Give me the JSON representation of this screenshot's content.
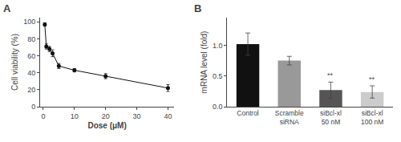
{
  "chart_data": [
    {
      "type": "line",
      "title": "A",
      "x": [
        0.5,
        1,
        2,
        3,
        5,
        10,
        20,
        40
      ],
      "values": [
        97,
        71,
        68,
        63,
        48,
        43,
        36,
        22
      ],
      "yerr": [
        2,
        3,
        3,
        4,
        3,
        2,
        3,
        4
      ],
      "xlabel": "Dose (μM)",
      "ylabel": "Cell viability (%)",
      "xlim": [
        -1,
        42
      ],
      "ylim": [
        0,
        105
      ],
      "xticks": [
        0,
        10,
        20,
        30,
        40
      ],
      "yticks": [
        0,
        20,
        40,
        60,
        80,
        100
      ],
      "color": "#111111",
      "marker": "circle",
      "line_style": "solid",
      "grid": false
    },
    {
      "type": "bar",
      "title": "B",
      "categories": [
        "Control",
        "Scramble\nsiRNA",
        "siBcl-xl\n50 nM",
        "siBcl-xl\n100 nM"
      ],
      "values": [
        1.02,
        0.75,
        0.27,
        0.24
      ],
      "yerr": [
        0.18,
        0.07,
        0.13,
        0.1
      ],
      "colors": [
        "#111111",
        "#999999",
        "#555555",
        "#cccccc"
      ],
      "ylabel": "mRNA level (fold)",
      "ylim": [
        0,
        1.45
      ],
      "yticks": [
        {
          "value": 0,
          "label": "0.0"
        },
        0.5,
        {
          "value": 1,
          "label": "1.0"
        }
      ],
      "annotations": [
        {
          "category": "siBcl-xl\n50 nM",
          "text": "**"
        },
        {
          "category": "siBcl-xl\n100 nM",
          "text": "**"
        }
      ],
      "grid": false
    }
  ]
}
